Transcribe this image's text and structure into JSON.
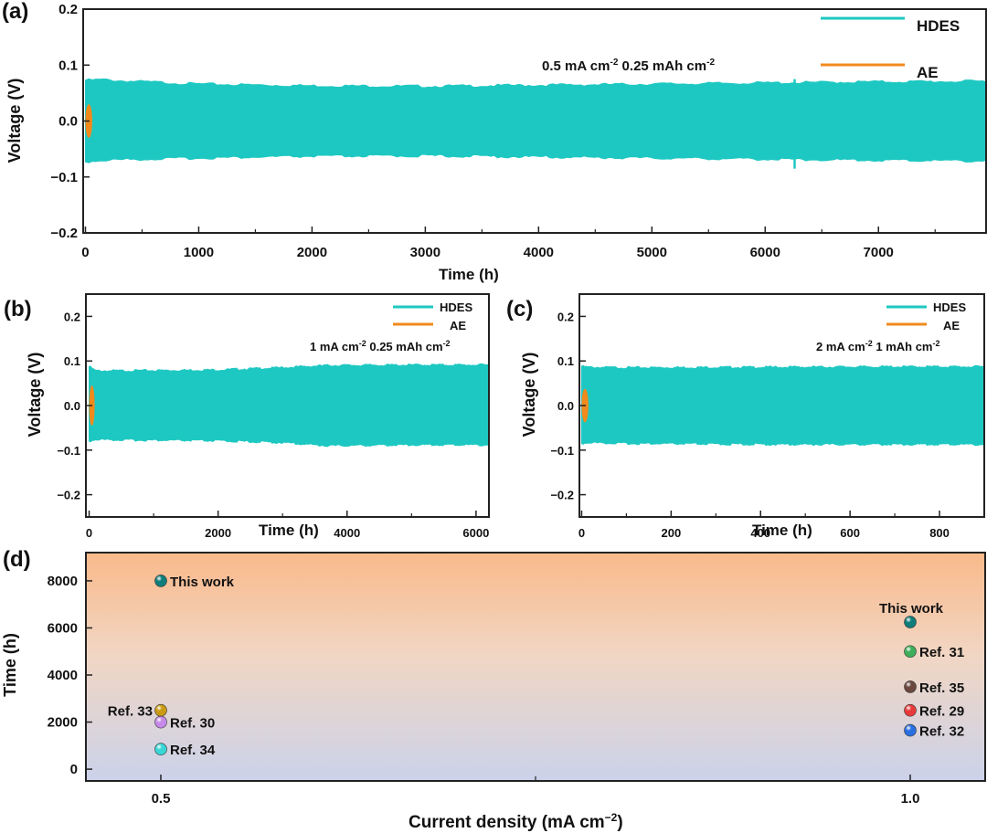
{
  "colors": {
    "hdes": "#1ec8c2",
    "ae": "#f08a1c",
    "axis": "#222222"
  },
  "chart_data": [
    {
      "panel_label": "(a)",
      "type": "line",
      "xlabel": "Time (h)",
      "ylabel": "Voltage (V)",
      "xlim": [
        -20,
        7950
      ],
      "ylim": [
        -0.2,
        0.2
      ],
      "x_ticks": [
        "0",
        "1000",
        "2000",
        "3000",
        "4000",
        "5000",
        "6000",
        "7000"
      ],
      "y_ticks": [
        "0.2",
        "0.1",
        "0.0",
        "−0.1",
        "−0.2"
      ],
      "annotation_parts": [
        "0.5 mA cm",
        "-2",
        " 0.25 mAh cm",
        "-2"
      ],
      "legend_position": "top-right",
      "series": [
        {
          "name": "HDES",
          "t_start": 0,
          "t_end": 7950,
          "envelope_t": [
            0,
            150,
            300,
            1000,
            2000,
            3000,
            4000,
            5000,
            6000,
            7000,
            7950
          ],
          "envelope_upper": [
            0.073,
            0.074,
            0.072,
            0.066,
            0.063,
            0.062,
            0.064,
            0.066,
            0.068,
            0.07,
            0.071
          ],
          "envelope_lower": [
            -0.073,
            -0.07,
            -0.069,
            -0.066,
            -0.063,
            -0.062,
            -0.064,
            -0.066,
            -0.068,
            -0.07,
            -0.071
          ]
        },
        {
          "name": "AE",
          "t_start": 0,
          "t_end": 60,
          "v_max": 0.04,
          "v_min": -0.04
        }
      ]
    },
    {
      "panel_label": "(b)",
      "type": "line",
      "xlabel": "Time (h)",
      "ylabel": "Voltage (V)",
      "xlim": [
        -50,
        6200
      ],
      "ylim": [
        -0.25,
        0.25
      ],
      "x_ticks": [
        "0",
        "2000",
        "4000",
        "6000"
      ],
      "y_ticks": [
        "0.2",
        "0.1",
        "0.0",
        "−0.1",
        "−0.2"
      ],
      "annotation_parts": [
        "1 mA cm",
        "-2",
        " 0.25 mAh cm",
        "-2"
      ],
      "legend_position": "top-right",
      "series": [
        {
          "name": "HDES",
          "t_start": 0,
          "t_end": 6200,
          "envelope_t": [
            0,
            100,
            500,
            2000,
            3000,
            3700,
            5000,
            6200
          ],
          "envelope_upper": [
            0.088,
            0.078,
            0.078,
            0.08,
            0.085,
            0.09,
            0.091,
            0.091
          ],
          "envelope_lower": [
            -0.08,
            -0.076,
            -0.077,
            -0.079,
            -0.083,
            -0.09,
            -0.088,
            -0.088
          ]
        },
        {
          "name": "AE",
          "t_start": 0,
          "t_end": 60,
          "v_max": 0.06,
          "v_min": -0.06
        }
      ]
    },
    {
      "panel_label": "(c)",
      "type": "line",
      "xlabel": "Time (h)",
      "ylabel": "Voltage (V)",
      "xlim": [
        -5,
        900
      ],
      "ylim": [
        -0.25,
        0.25
      ],
      "x_ticks": [
        "0",
        "200",
        "400",
        "600",
        "800"
      ],
      "y_ticks": [
        "0.2",
        "0.1",
        "0.0",
        "−0.1",
        "−0.2"
      ],
      "annotation_parts": [
        "2 mA cm",
        "-2",
        " 1 mAh cm",
        "-2"
      ],
      "legend_position": "top-right",
      "series": [
        {
          "name": "HDES",
          "t_start": 0,
          "t_end": 900,
          "envelope_t": [
            0,
            15,
            100,
            400,
            700,
            900
          ],
          "envelope_upper": [
            0.088,
            0.086,
            0.085,
            0.086,
            0.087,
            0.087
          ],
          "envelope_lower": [
            -0.085,
            -0.083,
            -0.085,
            -0.087,
            -0.087,
            -0.087
          ]
        },
        {
          "name": "AE",
          "t_start": 0,
          "t_end": 15,
          "v_max": 0.05,
          "v_min": -0.05
        }
      ]
    },
    {
      "panel_label": "(d)",
      "type": "scatter",
      "xlabel_parts": [
        "Current density (mA cm",
        "−2",
        ")"
      ],
      "ylabel": "Time (h)",
      "xlim": [
        0.45,
        1.05
      ],
      "ylim": [
        -500,
        9200
      ],
      "x_ticks": [
        "0.5",
        "1.0"
      ],
      "y_ticks": [
        "8000",
        "6000",
        "4000",
        "2000",
        "0"
      ],
      "points": [
        {
          "label": "This work",
          "x": 0.5,
          "y": 8000,
          "color": "#0f7d7a",
          "label_side": "right"
        },
        {
          "label": "Ref. 33",
          "x": 0.5,
          "y": 2500,
          "color": "#c99a12",
          "label_side": "left"
        },
        {
          "label": "Ref. 30",
          "x": 0.5,
          "y": 2000,
          "color": "#c58ae8",
          "label_side": "right"
        },
        {
          "label": "Ref. 34",
          "x": 0.5,
          "y": 850,
          "color": "#3ad6d6",
          "label_side": "right"
        },
        {
          "label": "This work",
          "x": 1.0,
          "y": 6250,
          "color": "#0f7d7a",
          "label_side": "above"
        },
        {
          "label": "Ref. 31",
          "x": 1.0,
          "y": 5000,
          "color": "#3fae5a",
          "label_side": "right"
        },
        {
          "label": "Ref. 35",
          "x": 1.0,
          "y": 3500,
          "color": "#6b4740",
          "label_side": "right"
        },
        {
          "label": "Ref. 29",
          "x": 1.0,
          "y": 2500,
          "color": "#e83a3a",
          "label_side": "right"
        },
        {
          "label": "Ref. 32",
          "x": 1.0,
          "y": 1650,
          "color": "#2a6fe0",
          "label_side": "right"
        }
      ]
    }
  ]
}
